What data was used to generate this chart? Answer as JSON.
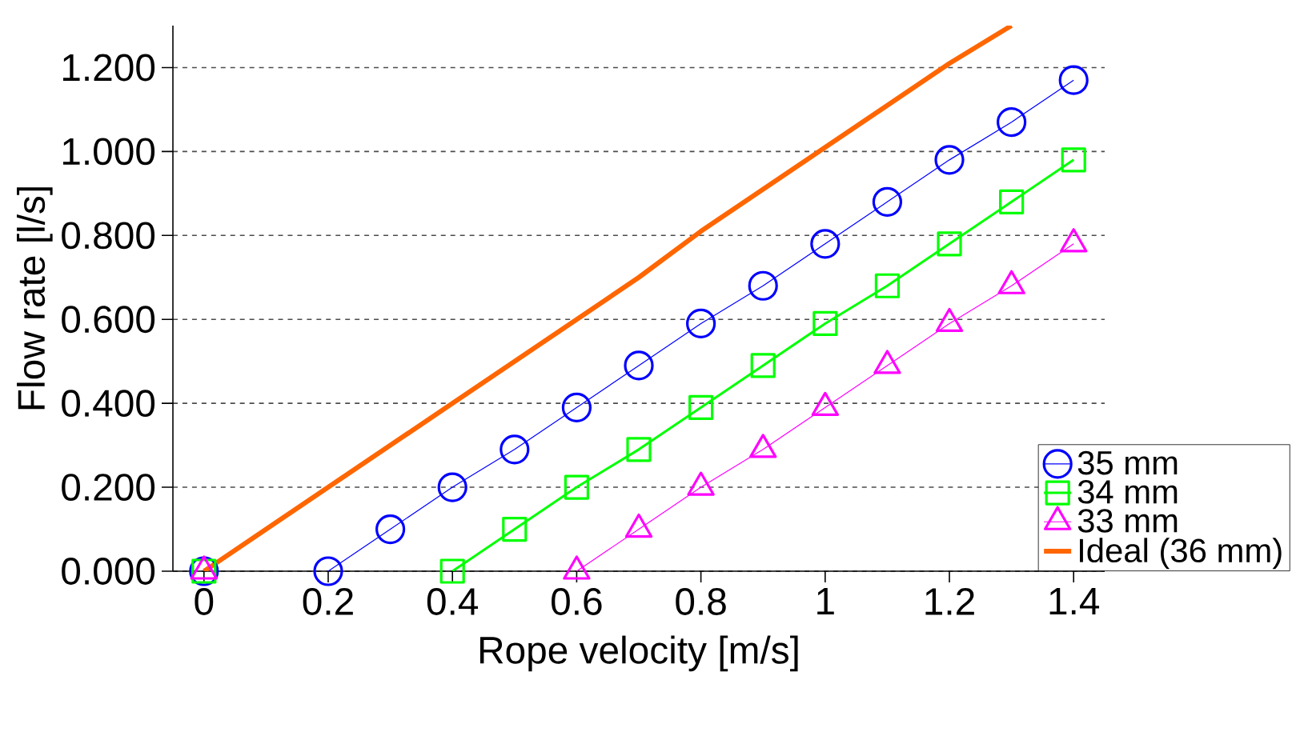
{
  "chart_data": {
    "type": "line",
    "xlabel": "Rope velocity [m/s]",
    "ylabel": "Flow rate [l/s]",
    "x": [
      0,
      0.1,
      0.2,
      0.3,
      0.4,
      0.5,
      0.6,
      0.7,
      0.8,
      0.9,
      1.0,
      1.1,
      1.2,
      1.3,
      1.4
    ],
    "series": [
      {
        "name": "35 mm",
        "color": "#0000ff",
        "marker": "circle",
        "values": [
          0,
          null,
          0,
          0.1,
          0.2,
          0.29,
          0.39,
          0.49,
          0.59,
          0.68,
          0.78,
          0.88,
          0.98,
          1.07,
          1.17
        ]
      },
      {
        "name": "34 mm",
        "color": "#00ff00",
        "marker": "square",
        "values": [
          0,
          null,
          null,
          null,
          0,
          0.1,
          0.2,
          0.29,
          0.39,
          0.49,
          0.59,
          0.68,
          0.78,
          0.88,
          0.98
        ]
      },
      {
        "name": "33 mm",
        "color": "#ff00ff",
        "marker": "triangle",
        "values": [
          0,
          null,
          null,
          null,
          null,
          null,
          0,
          0.1,
          0.2,
          0.29,
          0.39,
          0.49,
          0.59,
          0.68,
          0.78
        ]
      },
      {
        "name": "Ideal (36 mm)",
        "color": "#ff6600",
        "marker": "none",
        "values": [
          0,
          0.1,
          0.2,
          0.3,
          0.4,
          0.5,
          0.6,
          0.7,
          0.81,
          0.91,
          1.01,
          1.11,
          1.21,
          1.3,
          null
        ]
      }
    ],
    "xlim": [
      -0.05,
      1.45
    ],
    "ylim": [
      0,
      1.3
    ],
    "xticks": [
      0,
      0.2,
      0.4,
      0.6,
      0.8,
      1,
      1.2,
      1.4
    ],
    "yticks": [
      {
        "value": 0,
        "label": "0.000"
      },
      {
        "value": 0.2,
        "label": "0.200"
      },
      {
        "value": 0.4,
        "label": "0.400"
      },
      {
        "value": 0.6,
        "label": "0.600"
      },
      {
        "value": 0.8,
        "label": "0.800"
      },
      {
        "value": 1.0,
        "label": "1.000"
      },
      {
        "value": 1.2,
        "label": "1.200"
      }
    ],
    "grid": "y",
    "legend": "bottom right"
  }
}
